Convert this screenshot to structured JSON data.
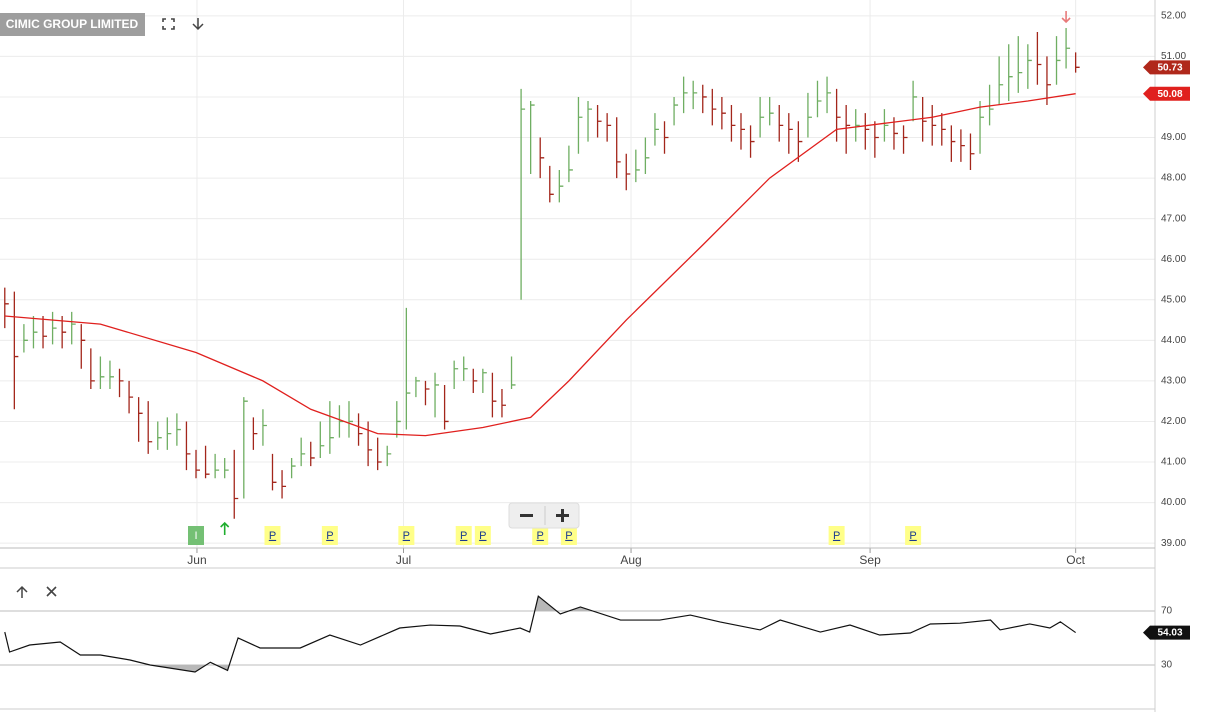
{
  "chart_data": [
    {
      "type": "ohlc",
      "title": "CIMIC GROUP LIMITED",
      "xlim": [
        -0.5,
        120.3
      ],
      "xticks": [
        {
          "value": 20.1,
          "label": "Jun"
        },
        {
          "value": 41.7,
          "label": "Jul"
        },
        {
          "value": 65.5,
          "label": "Aug"
        },
        {
          "value": 90.5,
          "label": "Sep"
        },
        {
          "value": 112,
          "label": "Oct"
        }
      ],
      "ylim": [
        38.88,
        52.39
      ],
      "yticks": [
        {
          "value": 39,
          "label": "39.00"
        },
        {
          "value": 40,
          "label": "40.00"
        },
        {
          "value": 41,
          "label": "41.00"
        },
        {
          "value": 42,
          "label": "42.00"
        },
        {
          "value": 43,
          "label": "43.00"
        },
        {
          "value": 44,
          "label": "44.00"
        },
        {
          "value": 45,
          "label": "45.00"
        },
        {
          "value": 46,
          "label": "46.00"
        },
        {
          "value": 47,
          "label": "47.00"
        },
        {
          "value": 48,
          "label": "48.00"
        },
        {
          "value": 49,
          "label": "49.00"
        },
        {
          "value": 50,
          "label": "50.00"
        },
        {
          "value": 51,
          "label": "51.00"
        },
        {
          "value": 52,
          "label": "52.00"
        }
      ],
      "grid": true,
      "bars": {
        "up_color": "#6fae62",
        "down_color": "#a3261b",
        "high": [
          45.3,
          45.2,
          44.4,
          44.6,
          44.6,
          44.7,
          44.6,
          44.7,
          44.4,
          43.8,
          43.6,
          43.5,
          43.3,
          43.0,
          42.6,
          42.5,
          42.0,
          42.1,
          42.2,
          42.0,
          41.3,
          41.4,
          41.2,
          41.1,
          41.3,
          42.6,
          42.1,
          42.3,
          41.2,
          40.8,
          41.1,
          41.6,
          41.5,
          42.0,
          42.5,
          42.4,
          42.5,
          42.2,
          42.0,
          41.6,
          41.4,
          42.5,
          44.8,
          43.1,
          43.0,
          43.2,
          42.9,
          43.5,
          43.6,
          43.3,
          43.3,
          43.2,
          42.8,
          43.6,
          50.2,
          49.9,
          49.0,
          48.3,
          48.2,
          48.8,
          50.0,
          49.9,
          49.8,
          49.6,
          49.5,
          48.6,
          48.7,
          49.0,
          49.6,
          49.4,
          50.0,
          50.5,
          50.4,
          50.3,
          50.2,
          50.0,
          49.8,
          49.6,
          49.3,
          50.0,
          50.0,
          49.8,
          49.6,
          49.4,
          50.1,
          50.4,
          50.5,
          50.2,
          49.8,
          49.7,
          49.6,
          49.4,
          49.7,
          49.5,
          49.3,
          50.4,
          50.0,
          49.8,
          49.6,
          49.3,
          49.2,
          49.1,
          49.9,
          50.3,
          51.0,
          51.3,
          51.5,
          51.3,
          51.6,
          51.0,
          51.5,
          51.7,
          51.1
        ],
        "low": [
          44.3,
          42.3,
          43.7,
          43.8,
          43.8,
          43.9,
          43.8,
          43.9,
          43.3,
          42.8,
          42.8,
          42.8,
          42.6,
          42.2,
          41.5,
          41.2,
          41.3,
          41.3,
          41.4,
          40.8,
          40.6,
          40.6,
          40.6,
          40.6,
          39.6,
          40.1,
          41.3,
          41.4,
          40.3,
          40.1,
          40.6,
          40.9,
          40.9,
          41.1,
          41.2,
          41.6,
          41.6,
          41.4,
          40.9,
          40.8,
          40.9,
          41.6,
          41.8,
          42.6,
          42.4,
          42.1,
          41.8,
          42.8,
          43.0,
          42.7,
          42.7,
          42.1,
          42.1,
          42.8,
          45.0,
          48.1,
          48.0,
          47.4,
          47.4,
          47.9,
          48.6,
          48.9,
          49.0,
          48.9,
          48.0,
          47.7,
          47.9,
          48.1,
          48.8,
          48.6,
          49.3,
          49.6,
          49.7,
          49.6,
          49.3,
          49.2,
          48.9,
          48.7,
          48.5,
          49.0,
          49.3,
          48.9,
          48.6,
          48.4,
          49.0,
          49.5,
          49.6,
          48.9,
          48.6,
          48.9,
          48.7,
          48.5,
          48.9,
          48.7,
          48.6,
          49.4,
          48.9,
          48.8,
          48.8,
          48.4,
          48.4,
          48.2,
          48.6,
          49.3,
          49.8,
          49.9,
          50.1,
          50.2,
          50.3,
          49.8,
          50.3,
          50.7,
          50.6
        ],
        "close": [
          44.9,
          43.6,
          44.0,
          44.2,
          44.1,
          44.3,
          44.2,
          44.4,
          44.0,
          43.0,
          43.1,
          43.1,
          43.0,
          42.6,
          42.2,
          41.5,
          41.6,
          41.7,
          41.8,
          41.2,
          40.8,
          40.7,
          40.8,
          40.8,
          40.1,
          42.5,
          41.7,
          41.9,
          40.5,
          40.4,
          40.9,
          41.2,
          41.1,
          41.4,
          41.6,
          42.0,
          42.0,
          41.7,
          41.3,
          41.0,
          41.2,
          42.0,
          42.7,
          43.0,
          42.8,
          42.9,
          42.0,
          43.3,
          43.3,
          43.0,
          43.2,
          42.5,
          42.4,
          42.9,
          49.7,
          49.8,
          48.5,
          47.6,
          47.8,
          48.2,
          49.5,
          49.7,
          49.4,
          49.3,
          48.4,
          48.1,
          48.2,
          48.5,
          49.2,
          49.0,
          49.8,
          50.1,
          50.1,
          50.0,
          49.7,
          49.6,
          49.3,
          49.2,
          48.9,
          49.5,
          49.6,
          49.3,
          49.2,
          48.9,
          49.5,
          49.9,
          50.1,
          49.5,
          49.3,
          49.3,
          49.2,
          49.0,
          49.3,
          49.1,
          49.0,
          50.0,
          49.4,
          49.3,
          49.2,
          48.9,
          48.8,
          48.6,
          49.5,
          49.7,
          50.3,
          50.5,
          50.6,
          50.9,
          50.8,
          50.3,
          50.9,
          51.2,
          50.73
        ],
        "tag_color": "#b0281b"
      },
      "ma": {
        "color": "#e0201e",
        "x": [
          0,
          10,
          20,
          27,
          32,
          39,
          44,
          50,
          55,
          59,
          65,
          73,
          80,
          87,
          92,
          97,
          102,
          107,
          112
        ],
        "values": [
          44.6,
          44.4,
          43.7,
          43.0,
          42.3,
          41.7,
          41.65,
          41.85,
          42.1,
          43.0,
          44.5,
          46.35,
          48.0,
          49.2,
          49.35,
          49.5,
          49.75,
          49.9,
          50.08
        ]
      },
      "markers": [
        {
          "x": 20,
          "label": "I",
          "color": "#74c074",
          "text_color": "#ffffff"
        },
        {
          "x": 28,
          "label": "P",
          "color": "#ffff88",
          "text_color": "#1a3a8f"
        },
        {
          "x": 34,
          "label": "P",
          "color": "#ffff88",
          "text_color": "#1a3a8f"
        },
        {
          "x": 42,
          "label": "P",
          "color": "#ffff88",
          "text_color": "#1a3a8f"
        },
        {
          "x": 48,
          "label": "P",
          "color": "#ffff88",
          "text_color": "#1a3a8f"
        },
        {
          "x": 50,
          "label": "P",
          "color": "#ffff88",
          "text_color": "#1a3a8f"
        },
        {
          "x": 56,
          "label": "P",
          "color": "#ffff88",
          "text_color": "#1a3a8f"
        },
        {
          "x": 59,
          "label": "P",
          "color": "#ffff88",
          "text_color": "#1a3a8f"
        },
        {
          "x": 87,
          "label": "P",
          "color": "#ffff88",
          "text_color": "#1a3a8f"
        },
        {
          "x": 95,
          "label": "P",
          "color": "#ffff88",
          "text_color": "#1a3a8f"
        }
      ],
      "arrows": [
        {
          "x": 23,
          "direction": "up",
          "color": "#1fae2e"
        },
        {
          "x": 111,
          "direction": "down",
          "color": "#e87a7a"
        }
      ]
    },
    {
      "type": "line",
      "color": "#111111",
      "tag_color": "#111111",
      "shade_color": "#b8b8b8",
      "xlim": [
        -0.5,
        120.3
      ],
      "ylim": [
        -1.9,
        101.9
      ],
      "yticks": [
        30,
        70
      ],
      "x": [
        0,
        0.5,
        2.6,
        5.8,
        7.9,
        10,
        13.1,
        15.2,
        19.9,
        21.5,
        23.3,
        24.4,
        26.7,
        30.9,
        34,
        37.2,
        41.3,
        44.5,
        47.6,
        50.8,
        53.9,
        54.9,
        55.8,
        58.1,
        60.2,
        64.4,
        68.5,
        71.7,
        74.8,
        79,
        81.1,
        85.3,
        88.4,
        91.5,
        94.7,
        96.8,
        99.9,
        103.1,
        104.1,
        107.2,
        109.3,
        110.4,
        112
      ],
      "values": [
        54.4,
        39.6,
        44.8,
        47,
        37.4,
        37.4,
        33.7,
        30,
        24.8,
        32,
        26,
        50,
        42.6,
        42.6,
        52.2,
        44.8,
        57.4,
        59.6,
        58.9,
        53,
        57.4,
        54.4,
        81,
        67.8,
        73,
        63.3,
        63.3,
        67,
        61.9,
        56,
        63.3,
        54.4,
        59.6,
        52.2,
        53.7,
        60.4,
        61,
        63.3,
        56,
        60.4,
        57.4,
        62,
        54.03
      ]
    }
  ]
}
